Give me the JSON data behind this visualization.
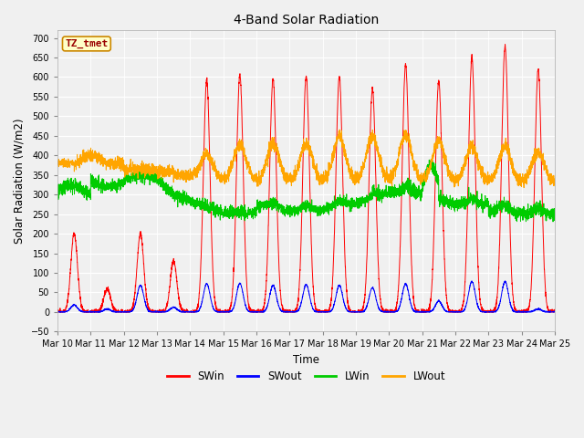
{
  "title": "4-Band Solar Radiation",
  "xlabel": "Time",
  "ylabel": "Solar Radiation (W/m2)",
  "ylim": [
    -50,
    720
  ],
  "yticks": [
    -50,
    0,
    50,
    100,
    150,
    200,
    250,
    300,
    350,
    400,
    450,
    500,
    550,
    600,
    650,
    700
  ],
  "fig_bg": "#f0f0f0",
  "plot_bg": "#f0f0f0",
  "grid_color": "#ffffff",
  "colors": {
    "SWin": "#ff0000",
    "SWout": "#0000ff",
    "LWin": "#00cc00",
    "LWout": "#ffa500"
  },
  "legend_label": "TZ_tmet",
  "n_days": 15,
  "start_day": 10,
  "points_per_day": 288
}
